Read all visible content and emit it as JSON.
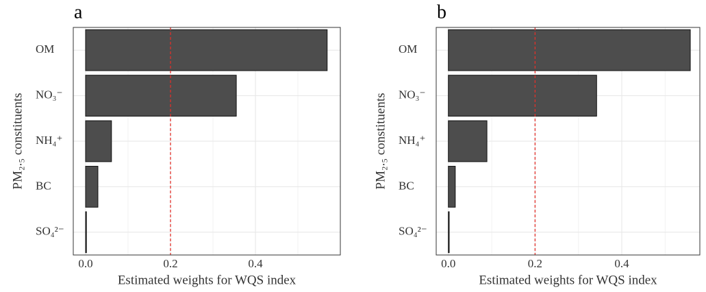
{
  "chart_data": [
    {
      "type": "bar",
      "orientation": "horizontal",
      "panel_label": "a",
      "categories": [
        "OM",
        "NO₃⁻",
        "NH₄⁺",
        "BC",
        "SO₄²⁻"
      ],
      "values": [
        0.569,
        0.355,
        0.061,
        0.029,
        0.002
      ],
      "color": "#4d4d4d",
      "xlim": [
        -0.029,
        0.6
      ],
      "xticks": [
        {
          "value": 0,
          "label": "0.0"
        },
        0.2,
        0.4
      ],
      "x_minor_grid": [
        0.1,
        0.3,
        0.5
      ],
      "grid": true,
      "ref_line": 0.2,
      "ref_color": "#e0302a",
      "xlabel": "Estimated weights for WQS index",
      "ylabel": "PM₂.₅ constituents"
    },
    {
      "type": "bar",
      "orientation": "horizontal",
      "panel_label": "b",
      "categories": [
        "OM",
        "NO₃⁻",
        "NH₄⁺",
        "BC",
        "SO₄²⁻"
      ],
      "values": [
        0.558,
        0.342,
        0.089,
        0.016,
        0.002
      ],
      "color": "#4d4d4d",
      "xlim": [
        -0.028,
        0.58
      ],
      "xticks": [
        {
          "value": 0,
          "label": "0.0"
        },
        0.2,
        0.4
      ],
      "x_minor_grid": [
        0.1,
        0.3,
        0.5
      ],
      "grid": true,
      "ref_line": 0.2,
      "ref_color": "#e0302a",
      "xlabel": "Estimated weights for WQS index",
      "ylabel": "PM₂.₅ constituents"
    }
  ]
}
